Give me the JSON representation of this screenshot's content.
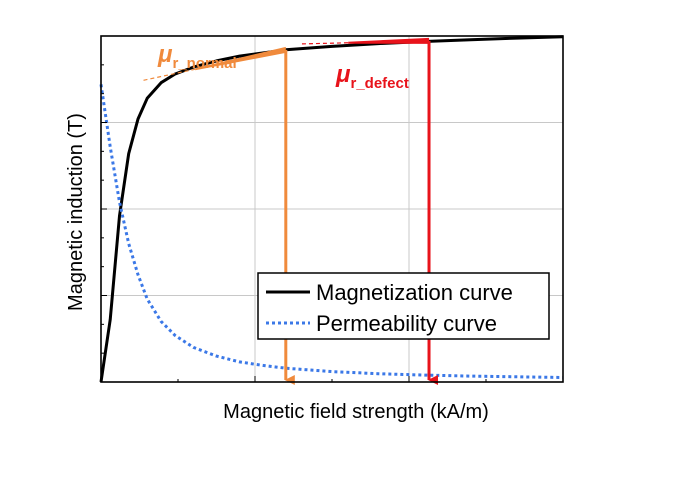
{
  "chart_data": {
    "type": "line",
    "xlabel": "Magnetic field strength (kA/m)",
    "ylabel": "Magnetic induction (T)",
    "xlim": [
      0,
      10
    ],
    "ylim": [
      0,
      10
    ],
    "grid": true,
    "tick_labels_shown": false,
    "legend_position": "bottom-right",
    "series": [
      {
        "name": "Magnetization curve",
        "color": "#000000",
        "style": "solid",
        "x": [
          0,
          0.2,
          0.4,
          0.6,
          0.8,
          1.0,
          1.3,
          1.6,
          2.0,
          2.5,
          3.0,
          4.0,
          5.0,
          6.0,
          7.0,
          8.0,
          9.0,
          10.0
        ],
        "y": [
          0,
          1.8,
          4.8,
          6.6,
          7.6,
          8.2,
          8.65,
          8.9,
          9.1,
          9.28,
          9.42,
          9.6,
          9.7,
          9.78,
          9.84,
          9.89,
          9.94,
          9.98
        ]
      },
      {
        "name": "Permeability curve",
        "color": "#3b78e7",
        "style": "dotted",
        "x": [
          0,
          0.2,
          0.4,
          0.6,
          0.8,
          1.0,
          1.3,
          1.6,
          2.0,
          2.5,
          3.0,
          3.5,
          4.0,
          5.0,
          6.0,
          7.0,
          8.0,
          9.0,
          10.0
        ],
        "y": [
          8.6,
          6.8,
          5.2,
          4.0,
          3.1,
          2.4,
          1.75,
          1.35,
          1.0,
          0.75,
          0.58,
          0.48,
          0.4,
          0.3,
          0.24,
          0.2,
          0.17,
          0.15,
          0.13
        ]
      }
    ],
    "annotations": [
      {
        "id": "normal",
        "color": "#f08a3c",
        "symbol": "μ",
        "subscript": "r_normal",
        "x": 4.0,
        "y": 9.6,
        "tangent_from": [
          1.2,
          8.8
        ],
        "tangent_to": [
          4.0,
          9.6
        ]
      },
      {
        "id": "defect",
        "color": "#e8131b",
        "symbol": "μ",
        "subscript": "r_defect",
        "x": 7.1,
        "y": 9.86,
        "tangent_from": [
          4.6,
          9.78
        ],
        "tangent_to": [
          7.1,
          9.86
        ]
      }
    ]
  }
}
